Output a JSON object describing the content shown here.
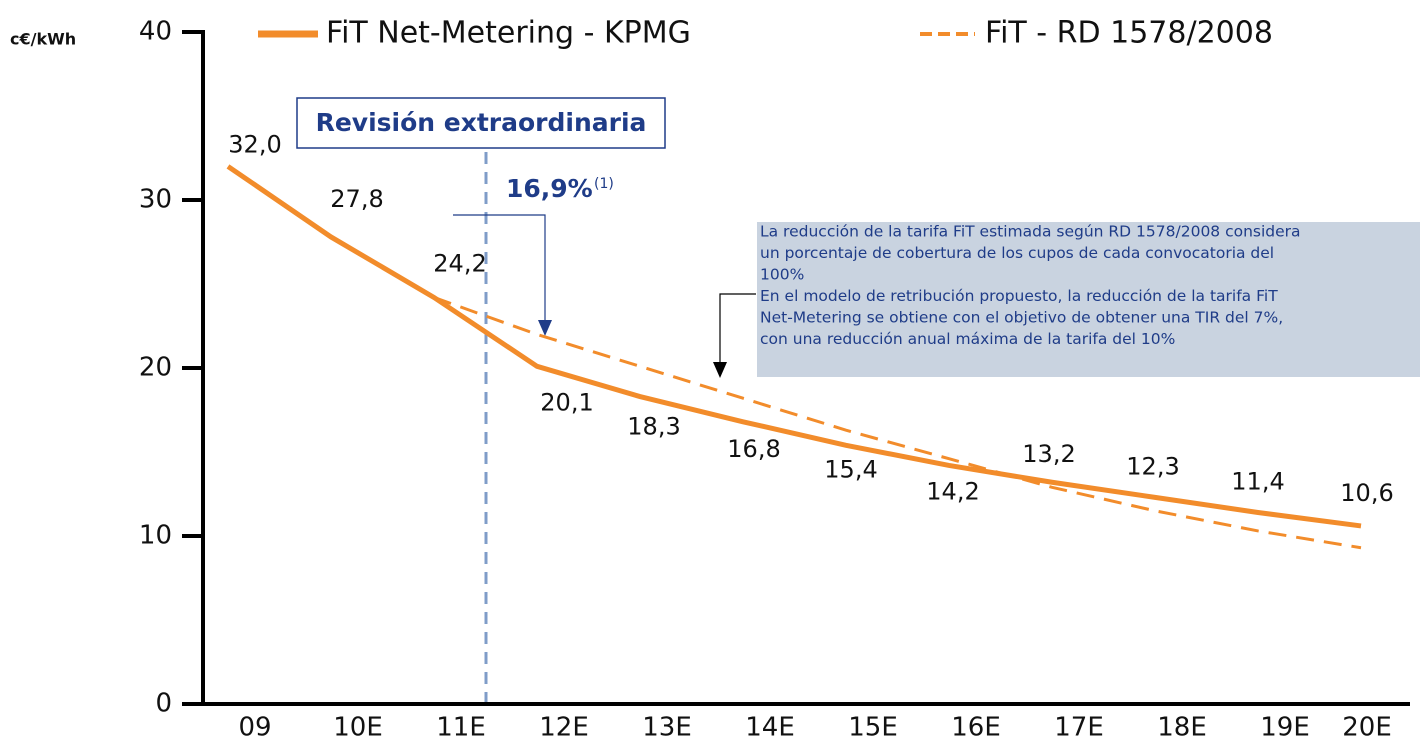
{
  "chart_data": {
    "type": "line",
    "y_axis_label": "c€/kWh",
    "categories": [
      "09",
      "10E",
      "11E",
      "12E",
      "13E",
      "14E",
      "15E",
      "16E",
      "17E",
      "18E",
      "19E",
      "20E"
    ],
    "series": [
      {
        "name": "FiT Net-Metering - KPMG",
        "color": "#f28c2b",
        "style": "solid",
        "values": [
          32.0,
          27.8,
          24.2,
          20.1,
          18.3,
          16.8,
          15.4,
          14.2,
          13.2,
          12.3,
          11.4,
          10.6
        ],
        "value_labels": [
          "32,0",
          "27,8",
          "24,2",
          "20,1",
          "18,3",
          "16,8",
          "15,4",
          "14,2",
          "13,2",
          "12,3",
          "11,4",
          "10,6"
        ]
      },
      {
        "name": "FiT - RD 1578/2008",
        "color": "#f28c2b",
        "style": "dashed",
        "values": [
          null,
          null,
          24.2,
          22.0,
          20.1,
          18.2,
          16.3,
          14.6,
          12.9,
          11.5,
          10.3,
          9.3
        ]
      }
    ],
    "ylim": [
      0,
      40
    ],
    "yticks": [
      0,
      10,
      20,
      30,
      40
    ],
    "annotations": {
      "revision": "Revisión extraordinaria",
      "reduction": "16,9%",
      "reduction_note": "(1)",
      "note_lines": [
        "La reducción de la tarifa FiT estimada según RD 1578/2008 considera",
        "un porcentaje de cobertura de los cupos de cada convocatoria del",
        "100%",
        "En el modelo de retribución propuesto, la reducción de la tarifa FiT",
        "Net-Metering se obtiene con el objetivo de obtener una TIR del 7%,",
        "con una reducción anual máxima de la tarifa del 10%"
      ]
    }
  }
}
